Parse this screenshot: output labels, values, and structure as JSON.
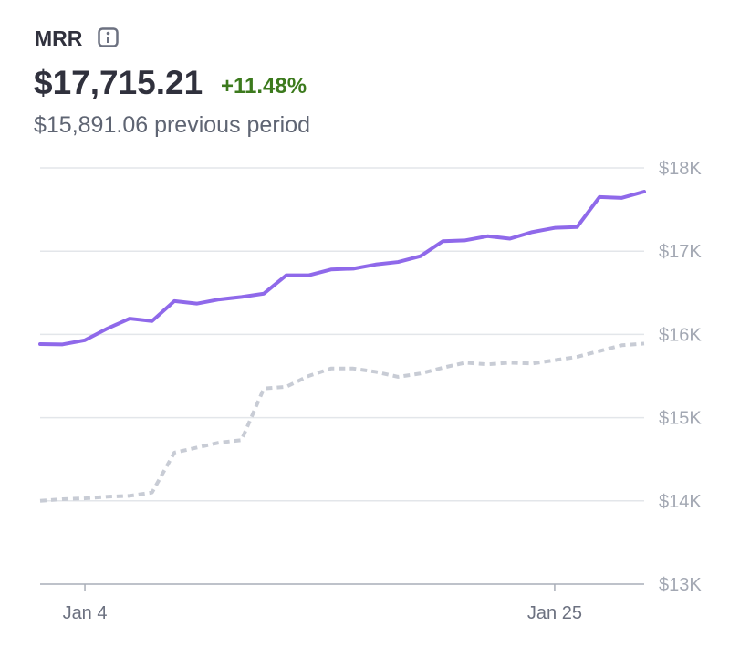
{
  "chart_data": {
    "type": "line",
    "title": "MRR",
    "headline": "$17,715.21",
    "change": "+11.48%",
    "subtitle": "$15,891.06 previous period",
    "categories": [
      null,
      null,
      "Jan 4",
      null,
      null,
      null,
      null,
      null,
      null,
      null,
      null,
      null,
      null,
      null,
      null,
      null,
      null,
      null,
      null,
      null,
      null,
      null,
      null,
      "Jan 25",
      null,
      null,
      null,
      null
    ],
    "series": [
      {
        "color": "#8f69ea",
        "dashed": false,
        "values": [
          15884,
          15880,
          15930,
          16070,
          16190,
          16160,
          16400,
          16370,
          16420,
          16450,
          16490,
          16710,
          16710,
          16780,
          16790,
          16840,
          16870,
          16940,
          17120,
          17130,
          17180,
          17150,
          17230,
          17280,
          17290,
          17650,
          17640,
          17715
        ]
      },
      {
        "color": "#c8ccd5",
        "dashed": true,
        "values": [
          14000,
          14020,
          14030,
          14050,
          14060,
          14100,
          14580,
          14640,
          14700,
          14730,
          15350,
          15370,
          15500,
          15590,
          15590,
          15550,
          15490,
          15530,
          15600,
          15660,
          15640,
          15660,
          15650,
          15690,
          15730,
          15800,
          15870,
          15890
        ]
      }
    ],
    "ylim": [
      13000,
      18000
    ],
    "yticks": [
      {
        "value": 13000,
        "label": "$13K"
      },
      {
        "value": 14000,
        "label": "$14K"
      },
      {
        "value": 15000,
        "label": "$15K"
      },
      {
        "value": 16000,
        "label": "$16K"
      },
      {
        "value": 17000,
        "label": "$17K"
      },
      {
        "value": 18000,
        "label": "$18K"
      }
    ],
    "grid": true
  }
}
